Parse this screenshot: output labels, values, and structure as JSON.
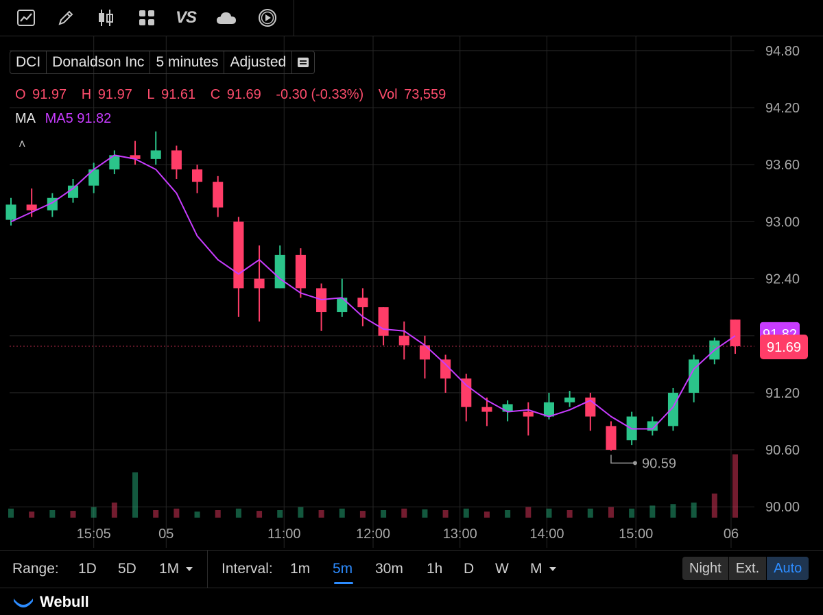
{
  "toolbar": {
    "tools": [
      "line-chart-icon",
      "pencil-icon",
      "candlestick-icon",
      "grid-icon",
      "compare-icon",
      "cloud-icon",
      "play-icon"
    ],
    "compare_label": "VS"
  },
  "header": {
    "symbol": "DCI",
    "company": "Donaldson Inc",
    "interval": "5 minutes",
    "adjust": "Adjusted"
  },
  "ohlc": {
    "o_label": "O",
    "o": "91.97",
    "h_label": "H",
    "h": "91.97",
    "l_label": "L",
    "l": "91.61",
    "c_label": "C",
    "c": "91.69",
    "change": "-0.30 (-0.33%)",
    "vol_label": "Vol",
    "vol": "73,559"
  },
  "ma": {
    "label": "MA",
    "ma5": "MA5 91.82"
  },
  "colors": {
    "up": "#2bc48a",
    "down": "#ff3d68",
    "ma": "#c83cff",
    "grid": "#262626",
    "axis_text": "#a8a8a8"
  },
  "chart_data": {
    "type": "candlestick",
    "ylim": [
      89.85,
      94.9
    ],
    "yticks": [
      "94.80",
      "94.20",
      "93.60",
      "93.00",
      "92.40",
      "91.80",
      "91.20",
      "90.60",
      "90.00"
    ],
    "x_labels": [
      "15:05",
      "05",
      "11:00",
      "12:00",
      "13:00",
      "14:00",
      "15:00",
      "06"
    ],
    "last_price": "91.69",
    "ma_price": "91.82",
    "low_annotation": "90.59",
    "series": [
      {
        "name": "MA5",
        "values": [
          93.0,
          93.1,
          93.2,
          93.35,
          93.55,
          93.7,
          93.66,
          93.55,
          93.3,
          92.85,
          92.6,
          92.45,
          92.6,
          92.4,
          92.25,
          92.18,
          92.2,
          92.0,
          91.87,
          91.85,
          91.7,
          91.5,
          91.28,
          91.12,
          91.0,
          91.02,
          90.95,
          91.02,
          91.12,
          90.95,
          90.82,
          90.82,
          91.05,
          91.45,
          91.65,
          91.8
        ]
      }
    ],
    "candles": [
      [
        93.02,
        93.18,
        92.96,
        93.25
      ],
      [
        93.18,
        93.12,
        93.05,
        93.35
      ],
      [
        93.12,
        93.25,
        93.05,
        93.3
      ],
      [
        93.25,
        93.38,
        93.2,
        93.45
      ],
      [
        93.38,
        93.55,
        93.3,
        93.62
      ],
      [
        93.55,
        93.7,
        93.5,
        93.75
      ],
      [
        93.7,
        93.66,
        93.6,
        93.85
      ],
      [
        93.66,
        93.75,
        93.6,
        93.95
      ],
      [
        93.75,
        93.55,
        93.45,
        93.8
      ],
      [
        93.55,
        93.42,
        93.3,
        93.6
      ],
      [
        93.42,
        93.15,
        93.05,
        93.48
      ],
      [
        93.0,
        92.3,
        92.0,
        93.05
      ],
      [
        92.4,
        92.3,
        91.95,
        92.75
      ],
      [
        92.3,
        92.65,
        92.3,
        92.75
      ],
      [
        92.65,
        92.3,
        92.2,
        92.72
      ],
      [
        92.3,
        92.05,
        91.85,
        92.35
      ],
      [
        92.05,
        92.2,
        92.0,
        92.4
      ],
      [
        92.2,
        92.1,
        91.9,
        92.3
      ],
      [
        92.1,
        91.8,
        91.7,
        92.1
      ],
      [
        91.8,
        91.7,
        91.55,
        91.95
      ],
      [
        91.7,
        91.55,
        91.35,
        91.8
      ],
      [
        91.55,
        91.35,
        91.2,
        91.6
      ],
      [
        91.35,
        91.05,
        90.9,
        91.4
      ],
      [
        91.05,
        91.0,
        90.85,
        91.15
      ],
      [
        91.0,
        91.08,
        90.9,
        91.12
      ],
      [
        91.0,
        90.95,
        90.75,
        91.1
      ],
      [
        90.95,
        91.1,
        90.92,
        91.2
      ],
      [
        91.1,
        91.15,
        91.05,
        91.22
      ],
      [
        91.15,
        90.95,
        90.8,
        91.2
      ],
      [
        90.85,
        90.6,
        90.59,
        90.9
      ],
      [
        90.7,
        90.95,
        90.65,
        91.0
      ],
      [
        90.8,
        90.9,
        90.75,
        90.95
      ],
      [
        90.85,
        91.2,
        90.8,
        91.25
      ],
      [
        91.2,
        91.55,
        91.1,
        91.6
      ],
      [
        91.55,
        91.75,
        91.5,
        91.78
      ],
      [
        91.97,
        91.69,
        91.61,
        91.97
      ]
    ],
    "volume": [
      [
        0.12,
        1
      ],
      [
        0.08,
        0
      ],
      [
        0.1,
        1
      ],
      [
        0.09,
        0
      ],
      [
        0.14,
        1
      ],
      [
        0.2,
        0
      ],
      [
        0.6,
        1
      ],
      [
        0.1,
        0
      ],
      [
        0.12,
        0
      ],
      [
        0.08,
        1
      ],
      [
        0.1,
        0
      ],
      [
        0.12,
        1
      ],
      [
        0.09,
        0
      ],
      [
        0.1,
        1
      ],
      [
        0.14,
        1
      ],
      [
        0.1,
        0
      ],
      [
        0.12,
        1
      ],
      [
        0.09,
        0
      ],
      [
        0.1,
        1
      ],
      [
        0.12,
        0
      ],
      [
        0.11,
        1
      ],
      [
        0.1,
        0
      ],
      [
        0.12,
        1
      ],
      [
        0.08,
        0
      ],
      [
        0.1,
        1
      ],
      [
        0.14,
        0
      ],
      [
        0.12,
        1
      ],
      [
        0.1,
        0
      ],
      [
        0.12,
        1
      ],
      [
        0.14,
        0
      ],
      [
        0.12,
        1
      ],
      [
        0.16,
        1
      ],
      [
        0.18,
        1
      ],
      [
        0.2,
        1
      ],
      [
        0.32,
        0
      ],
      [
        0.84,
        0
      ]
    ],
    "volume_max": 1.0
  },
  "bottom": {
    "range_label": "Range:",
    "ranges": [
      "1D",
      "5D",
      "1M"
    ],
    "interval_label": "Interval:",
    "intervals": [
      "1m",
      "5m",
      "30m",
      "1h",
      "D",
      "W",
      "M"
    ],
    "selected_interval": "5m",
    "session": [
      "Night",
      "Ext.",
      "Auto"
    ],
    "selected_session": "Auto"
  },
  "brand": {
    "name": "Webull"
  }
}
